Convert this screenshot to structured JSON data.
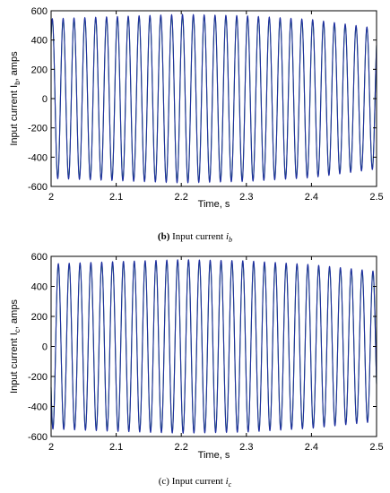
{
  "charts": [
    {
      "id": "b",
      "ylabel": "Input current I",
      "ylabel_sub": "b",
      "ylabel_suffix": ", amps",
      "xlabel": "Time, s",
      "caption_prefix": "(b)",
      "caption_text": "Input current",
      "caption_var": "i",
      "caption_sub": "b"
    },
    {
      "id": "c",
      "ylabel": "Input current I",
      "ylabel_sub": "c",
      "ylabel_suffix": ", amps",
      "xlabel": "Time, s",
      "caption_prefix": "(c)",
      "caption_text": "Input current",
      "caption_var": "i",
      "caption_sub": "c"
    }
  ],
  "chart_data": [
    {
      "type": "line",
      "xlim": [
        2,
        2.5
      ],
      "ylim": [
        -600,
        600
      ],
      "xticks": [
        2,
        2.1,
        2.2,
        2.3,
        2.4,
        2.5
      ],
      "xtick_labels": [
        "2",
        "2.1",
        "2.2",
        "2.3",
        "2.4",
        "2.5"
      ],
      "yticks": [
        -600,
        -400,
        -200,
        0,
        200,
        400,
        600
      ],
      "ytick_labels": [
        "-600",
        "-400",
        "-200",
        "0",
        "200",
        "400",
        "600"
      ],
      "grid": false,
      "series": [
        {
          "color": "#1f2fa0",
          "frequency_hz": 60,
          "phase_deg": 50,
          "amplitude_points": {
            "t": [
              2.0,
              2.1,
              2.2,
              2.3,
              2.4,
              2.5
            ],
            "amp": [
              545,
              560,
              575,
              565,
              540,
              480
            ]
          }
        },
        {
          "color": "#2e8b3a",
          "frequency_hz": 60,
          "phase_deg": 50,
          "amplitude_points": {
            "t": [
              2.0,
              2.1,
              2.2,
              2.3,
              2.4,
              2.5
            ],
            "amp": [
              535,
              550,
              565,
              555,
              530,
              470
            ]
          }
        }
      ]
    },
    {
      "type": "line",
      "xlim": [
        2,
        2.5
      ],
      "ylim": [
        -600,
        600
      ],
      "xticks": [
        2,
        2.1,
        2.2,
        2.3,
        2.4,
        2.5
      ],
      "xtick_labels": [
        "2",
        "2.1",
        "2.2",
        "2.3",
        "2.4",
        "2.5"
      ],
      "yticks": [
        -600,
        -400,
        -200,
        0,
        200,
        400,
        600
      ],
      "ytick_labels": [
        "600",
        "400",
        "200",
        "0",
        "-200",
        "-400",
        "-600"
      ],
      "ytick_labels_top_to_bottom": true,
      "grid": false,
      "series": [
        {
          "color": "#1f2fa0",
          "frequency_hz": 60,
          "phase_deg": 210,
          "amplitude_points": {
            "t": [
              2.0,
              2.1,
              2.2,
              2.3,
              2.4,
              2.5
            ],
            "amp": [
              550,
              565,
              578,
              570,
              545,
              500
            ]
          }
        },
        {
          "color": "#2e8b3a",
          "frequency_hz": 60,
          "phase_deg": 210,
          "amplitude_points": {
            "t": [
              2.0,
              2.1,
              2.2,
              2.3,
              2.4,
              2.5
            ],
            "amp": [
              540,
              555,
              568,
              560,
              535,
              490
            ]
          }
        }
      ]
    }
  ]
}
